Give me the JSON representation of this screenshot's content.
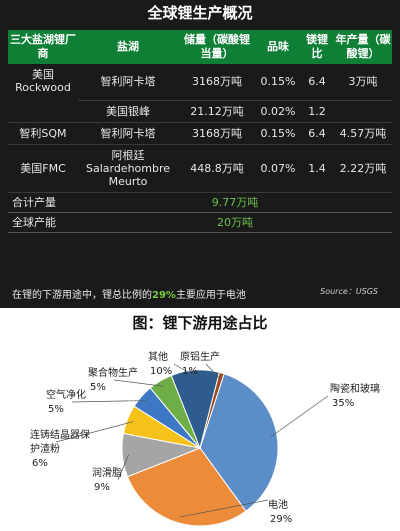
{
  "header": {
    "title": "全球锂生产概况"
  },
  "table": {
    "columns": [
      "三大盐湖锂厂商",
      "盐湖",
      "储量（碳酸锂当量）",
      "品味",
      "镁锂比",
      "年产量（碳酸锂）"
    ],
    "rows": [
      {
        "company": "美国Rockwood",
        "lake": "智利阿卡塔",
        "reserve": "3168万吨",
        "grade": "0.15%",
        "mg_li": "6.4",
        "output": "3万吨"
      },
      {
        "company": "",
        "lake": "美国银峰",
        "reserve": "21.12万吨",
        "grade": "0.02%",
        "mg_li": "1.2",
        "output": ""
      },
      {
        "company": "智利SQM",
        "lake": "智利阿卡塔",
        "reserve": "3168万吨",
        "grade": "0.15%",
        "mg_li": "6.4",
        "output": "4.57万吨"
      },
      {
        "company": "美国FMC",
        "lake": "阿根廷Salardehombre Meurto",
        "reserve": "448.8万吨",
        "grade": "0.07%",
        "mg_li": "1.4",
        "output": "2.22万吨"
      }
    ],
    "total_label": "合计产量",
    "total_value": "9.77万吨",
    "capacity_label": "全球产能",
    "capacity_value": "20万吨"
  },
  "note": {
    "prefix": "在锂的下游用途中，锂总比例的",
    "highlight": "29%",
    "suffix": "主要应用于电池",
    "source": "Source：USGS"
  },
  "chart_data": {
    "type": "pie",
    "title": "图：锂下游用途占比",
    "slices": [
      {
        "label": "陶瓷和玻璃",
        "value": 35,
        "color": "#5b8ec9"
      },
      {
        "label": "电池",
        "value": 29,
        "color": "#ec8b3a"
      },
      {
        "label": "润滑脂",
        "value": 9,
        "color": "#a5a5a5"
      },
      {
        "label": "连铸结晶器保护渣粉",
        "value": 6,
        "color": "#f6c21a"
      },
      {
        "label": "空气净化",
        "value": 5,
        "color": "#3e78c4"
      },
      {
        "label": "聚合物生产",
        "value": 5,
        "color": "#6fae46"
      },
      {
        "label": "其他",
        "value": 10,
        "color": "#2f5c8f"
      },
      {
        "label": "原铝生产",
        "value": 1,
        "color": "#9a4a20"
      }
    ],
    "value_labels": [
      "35%",
      "29%",
      "9%",
      "6%",
      "5%",
      "5%",
      "10%",
      "1%"
    ]
  }
}
